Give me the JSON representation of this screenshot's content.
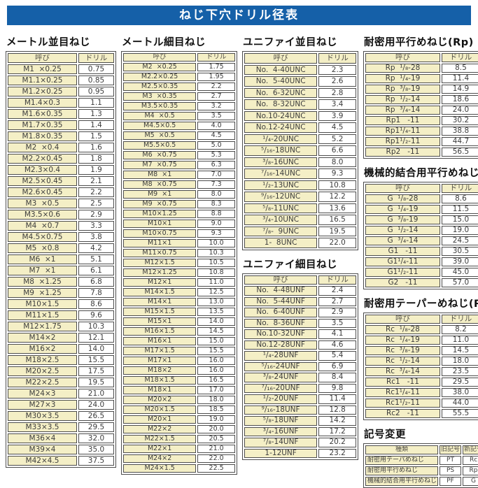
{
  "title": "ねじ下穴ドリル径表",
  "accent_color": "#1560a8",
  "cream_color": "#f4efc6",
  "sections": {
    "metric_coarse": {
      "heading": "メートル並目ねじ",
      "headers": [
        "呼び",
        "ドリル"
      ],
      "rows": [
        [
          "M1  ×0.25",
          "0.75"
        ],
        [
          "M1.1×0.25",
          "0.85"
        ],
        [
          "M1.2×0.25",
          "0.95"
        ],
        [
          "M1.4×0.3",
          "1.1"
        ],
        [
          "M1.6×0.35",
          "1.3"
        ],
        [
          "M1.7×0.35",
          "1.4"
        ],
        [
          "M1.8×0.35",
          "1.5"
        ],
        [
          "M2  ×0.4",
          "1.6"
        ],
        [
          "M2.2×0.45",
          "1.8"
        ],
        [
          "M2.3×0.4",
          "1.9"
        ],
        [
          "M2.5×0.45",
          "2.1"
        ],
        [
          "M2.6×0.45",
          "2.2"
        ],
        [
          "M3  ×0.5",
          "2.5"
        ],
        [
          "M3.5×0.6",
          "2.9"
        ],
        [
          "M4  ×0.7",
          "3.3"
        ],
        [
          "M4.5×0.75",
          "3.8"
        ],
        [
          "M5  ×0.8",
          "4.2"
        ],
        [
          "M6  ×1",
          "5.1"
        ],
        [
          "M7  ×1",
          "6.1"
        ],
        [
          "M8  ×1.25",
          "6.8"
        ],
        [
          "M9  ×1.25",
          "7.8"
        ],
        [
          "M10×1.5",
          "8.6"
        ],
        [
          "M11×1.5",
          "9.6"
        ],
        [
          "M12×1.75",
          "10.3"
        ],
        [
          "M14×2",
          "12.1"
        ],
        [
          "M16×2",
          "14.0"
        ],
        [
          "M18×2.5",
          "15.5"
        ],
        [
          "M20×2.5",
          "17.5"
        ],
        [
          "M22×2.5",
          "19.5"
        ],
        [
          "M24×3",
          "21.0"
        ],
        [
          "M27×3",
          "24.0"
        ],
        [
          "M30×3.5",
          "26.5"
        ],
        [
          "M33×3.5",
          "29.5"
        ],
        [
          "M36×4",
          "32.0"
        ],
        [
          "M39×4",
          "35.0"
        ],
        [
          "M42×4.5",
          "37.5"
        ]
      ]
    },
    "metric_fine": {
      "heading": "メートル細目ねじ",
      "headers": [
        "呼び",
        "ドリル"
      ],
      "rows": [
        [
          "M2  ×0.25",
          "1.75"
        ],
        [
          "M2.2×0.25",
          "1.95"
        ],
        [
          "M2.5×0.35",
          "2.2"
        ],
        [
          "M3  ×0.35",
          "2.7"
        ],
        [
          "M3.5×0.35",
          "3.2"
        ],
        [
          "M4  ×0.5",
          "3.5"
        ],
        [
          "M4.5×0.5",
          "4.0"
        ],
        [
          "M5  ×0.5",
          "4.5"
        ],
        [
          "M5.5×0.5",
          "5.0"
        ],
        [
          "M6  ×0.75",
          "5.3"
        ],
        [
          "M7  ×0.75",
          "6.3"
        ],
        [
          "M8  ×1",
          "7.0"
        ],
        [
          "M8  ×0.75",
          "7.3"
        ],
        [
          "M9  ×1",
          "8.0"
        ],
        [
          "M9  ×0.75",
          "8.3"
        ],
        [
          "M10×1.25",
          "8.8"
        ],
        [
          "M10×1",
          "9.0"
        ],
        [
          "M10×0.75",
          "9.3"
        ],
        [
          "M11×1",
          "10.0"
        ],
        [
          "M11×0.75",
          "10.3"
        ],
        [
          "M12×1.5",
          "10.5"
        ],
        [
          "M12×1.25",
          "10.8"
        ],
        [
          "M12×1",
          "11.0"
        ],
        [
          "M14×1.5",
          "12.5"
        ],
        [
          "M14×1",
          "13.0"
        ],
        [
          "M15×1.5",
          "13.5"
        ],
        [
          "M15×1",
          "14.0"
        ],
        [
          "M16×1.5",
          "14.5"
        ],
        [
          "M16×1",
          "15.0"
        ],
        [
          "M17×1.5",
          "15.5"
        ],
        [
          "M17×1",
          "16.0"
        ],
        [
          "M18×2",
          "16.0"
        ],
        [
          "M18×1.5",
          "16.5"
        ],
        [
          "M18×1",
          "17.0"
        ],
        [
          "M20×2",
          "18.0"
        ],
        [
          "M20×1.5",
          "18.5"
        ],
        [
          "M20×1",
          "19.0"
        ],
        [
          "M22×2",
          "20.0"
        ],
        [
          "M22×1.5",
          "20.5"
        ],
        [
          "M22×1",
          "21.0"
        ],
        [
          "M24×2",
          "22.0"
        ],
        [
          "M24×1.5",
          "22.5"
        ]
      ]
    },
    "unified_coarse": {
      "heading": "ユニファイ並目ねじ",
      "headers": [
        "呼び",
        "ドリル"
      ],
      "rows": [
        [
          "No.  4-40UNC",
          "2.3"
        ],
        [
          "No.  5-40UNC",
          "2.6"
        ],
        [
          "No.  6-32UNC",
          "2.8"
        ],
        [
          "No.  8-32UNC",
          "3.4"
        ],
        [
          "No.10-24UNC",
          "3.9"
        ],
        [
          "No.12-24UNC",
          "4.5"
        ],
        [
          "¹/₄-20UNC",
          "5.2"
        ],
        [
          "⁵/₁₆-18UNC",
          "6.6"
        ],
        [
          "³/₈-16UNC",
          "8.0"
        ],
        [
          "⁷/₁₆-14UNC",
          "9.3"
        ],
        [
          "¹/₂-13UNC",
          "10.8"
        ],
        [
          "⁹/₁₆-12UNC",
          "12.2"
        ],
        [
          "⁵/₈-11UNC",
          "13.6"
        ],
        [
          "³/₄-10UNC",
          "16.5"
        ],
        [
          "⁷/₈-  9UNC",
          "19.5"
        ],
        [
          "1-  8UNC",
          "22.0"
        ]
      ]
    },
    "unified_fine": {
      "heading": "ユニファイ細目ねじ",
      "headers": [
        "呼び",
        "ドリル"
      ],
      "rows": [
        [
          "No.  4-48UNF",
          "2.4"
        ],
        [
          "No.  5-44UNF",
          "2.7"
        ],
        [
          "No.  6-40UNF",
          "2.9"
        ],
        [
          "No.  8-36UNF",
          "3.5"
        ],
        [
          "No.10-32UNF",
          "4.1"
        ],
        [
          "No.12-28UNF",
          "4.6"
        ],
        [
          "¹/₄-28UNF",
          "5.4"
        ],
        [
          "⁵/₁₆-24UNF",
          "6.9"
        ],
        [
          "³/₈-24UNF",
          "8.4"
        ],
        [
          "⁷/₁₆-20UNF",
          "9.8"
        ],
        [
          "¹/₂-20UNF",
          "11.4"
        ],
        [
          "⁹/₁₆-18UNF",
          "12.8"
        ],
        [
          "⁵/₈-18UNF",
          "14.2"
        ],
        [
          "³/₄-16UNF",
          "17.2"
        ],
        [
          "⁷/₈-14UNF",
          "20.2"
        ],
        [
          "1-12UNF",
          "23.2"
        ]
      ]
    },
    "rp": {
      "heading": "耐密用平行めねじ(Rp)",
      "headers": [
        "呼び",
        "ドリル"
      ],
      "rows": [
        [
          "Rp  ¹/₈-28",
          "8.5"
        ],
        [
          "Rp  ¹/₄-19",
          "11.4"
        ],
        [
          "Rp  ³/₈-19",
          "14.9"
        ],
        [
          "Rp  ¹/₂-14",
          "18.6"
        ],
        [
          "Rp  ³/₄-14",
          "24.0"
        ],
        [
          "Rp1   -11",
          "30.2"
        ],
        [
          "Rp1¹/₄-11",
          "38.8"
        ],
        [
          "Rp1¹/₂-11",
          "44.7"
        ],
        [
          "Rp2   -11",
          "56.5"
        ]
      ]
    },
    "g": {
      "heading": "機械的結合用平行めねじ(G)",
      "headers": [
        "呼び",
        "ドリル"
      ],
      "rows": [
        [
          "G  ¹/₈-28",
          "8.6"
        ],
        [
          "G  ¹/₄-19",
          "11.5"
        ],
        [
          "G  ³/₈-19",
          "15.0"
        ],
        [
          "G  ¹/₂-14",
          "19.0"
        ],
        [
          "G  ³/₄-14",
          "24.5"
        ],
        [
          "G1   -11",
          "30.5"
        ],
        [
          "G1¹/₄-11",
          "39.0"
        ],
        [
          "G1¹/₂-11",
          "45.0"
        ],
        [
          "G2   -11",
          "57.0"
        ]
      ]
    },
    "rc": {
      "heading": "耐密用テーパーめねじ(Rc)",
      "headers": [
        "呼び",
        "ドリル"
      ],
      "rows": [
        [
          "Rc  ¹/₈-28",
          "8.2"
        ],
        [
          "Rc  ¹/₄-19",
          "11.0"
        ],
        [
          "Rc  ³/₈-19",
          "14.5"
        ],
        [
          "Rc  ¹/₂-14",
          "18.0"
        ],
        [
          "Rc  ³/₄-14",
          "23.5"
        ],
        [
          "Rc1   -11",
          "29.5"
        ],
        [
          "Rc1¹/₄-11",
          "38.0"
        ],
        [
          "Rc1¹/₂-11",
          "44.0"
        ],
        [
          "Rc2   -11",
          "55.5"
        ]
      ]
    },
    "symbol_change": {
      "heading": "記号変更",
      "headers": [
        "種類",
        "旧記号",
        "新記号"
      ],
      "rows": [
        [
          "耐密用テーパめねじ",
          "PT",
          "Rc"
        ],
        [
          "耐密用平行めねじ",
          "PS",
          "Rp"
        ],
        [
          "機械的結合用平行めねじ",
          "PF",
          "G"
        ]
      ]
    }
  }
}
